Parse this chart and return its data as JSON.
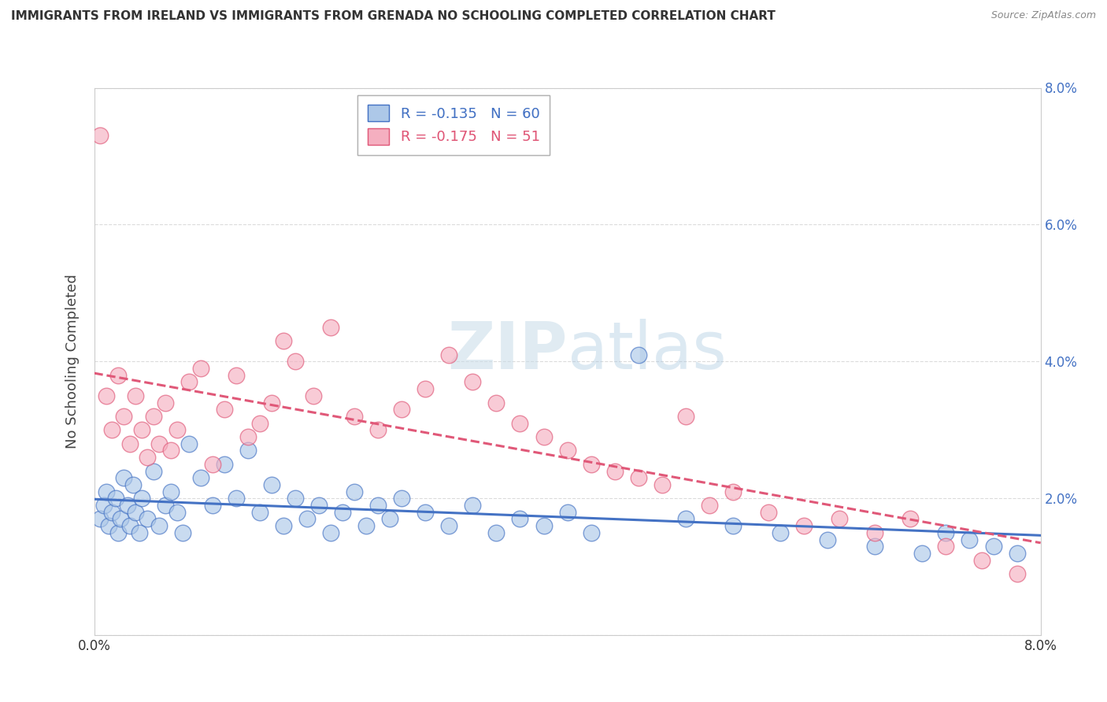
{
  "title": "IMMIGRANTS FROM IRELAND VS IMMIGRANTS FROM GRENADA NO SCHOOLING COMPLETED CORRELATION CHART",
  "source": "Source: ZipAtlas.com",
  "ylabel": "No Schooling Completed",
  "xlim": [
    0.0,
    8.0
  ],
  "ylim": [
    0.0,
    8.0
  ],
  "legend_ireland": "Immigrants from Ireland",
  "legend_grenada": "Immigrants from Grenada",
  "R_ireland": "-0.135",
  "N_ireland": "60",
  "R_grenada": "-0.175",
  "N_grenada": "51",
  "color_ireland": "#adc8e8",
  "color_grenada": "#f5afc0",
  "line_ireland": "#4472c4",
  "line_grenada": "#e05878",
  "background_color": "#ffffff",
  "grid_color": "#cccccc",
  "ireland_x": [
    0.05,
    0.08,
    0.1,
    0.12,
    0.15,
    0.18,
    0.2,
    0.22,
    0.25,
    0.28,
    0.3,
    0.33,
    0.35,
    0.38,
    0.4,
    0.45,
    0.5,
    0.55,
    0.6,
    0.65,
    0.7,
    0.75,
    0.8,
    0.9,
    1.0,
    1.1,
    1.2,
    1.3,
    1.4,
    1.5,
    1.6,
    1.7,
    1.8,
    1.9,
    2.0,
    2.1,
    2.2,
    2.3,
    2.4,
    2.5,
    2.6,
    2.8,
    3.0,
    3.2,
    3.4,
    3.6,
    3.8,
    4.0,
    4.2,
    4.6,
    5.0,
    5.4,
    5.8,
    6.2,
    6.6,
    7.0,
    7.2,
    7.4,
    7.6,
    7.8
  ],
  "ireland_y": [
    1.7,
    1.9,
    2.1,
    1.6,
    1.8,
    2.0,
    1.5,
    1.7,
    2.3,
    1.9,
    1.6,
    2.2,
    1.8,
    1.5,
    2.0,
    1.7,
    2.4,
    1.6,
    1.9,
    2.1,
    1.8,
    1.5,
    2.8,
    2.3,
    1.9,
    2.5,
    2.0,
    2.7,
    1.8,
    2.2,
    1.6,
    2.0,
    1.7,
    1.9,
    1.5,
    1.8,
    2.1,
    1.6,
    1.9,
    1.7,
    2.0,
    1.8,
    1.6,
    1.9,
    1.5,
    1.7,
    1.6,
    1.8,
    1.5,
    4.1,
    1.7,
    1.6,
    1.5,
    1.4,
    1.3,
    1.2,
    1.5,
    1.4,
    1.3,
    1.2
  ],
  "grenada_x": [
    0.05,
    0.1,
    0.15,
    0.2,
    0.25,
    0.3,
    0.35,
    0.4,
    0.45,
    0.5,
    0.55,
    0.6,
    0.65,
    0.7,
    0.8,
    0.9,
    1.0,
    1.1,
    1.2,
    1.3,
    1.4,
    1.5,
    1.6,
    1.7,
    1.85,
    2.0,
    2.2,
    2.4,
    2.6,
    2.8,
    3.0,
    3.2,
    3.4,
    3.6,
    3.8,
    4.0,
    4.2,
    4.4,
    4.6,
    4.8,
    5.0,
    5.2,
    5.4,
    5.7,
    6.0,
    6.3,
    6.6,
    6.9,
    7.2,
    7.5,
    7.8
  ],
  "grenada_y": [
    7.3,
    3.5,
    3.0,
    3.8,
    3.2,
    2.8,
    3.5,
    3.0,
    2.6,
    3.2,
    2.8,
    3.4,
    2.7,
    3.0,
    3.7,
    3.9,
    2.5,
    3.3,
    3.8,
    2.9,
    3.1,
    3.4,
    4.3,
    4.0,
    3.5,
    4.5,
    3.2,
    3.0,
    3.3,
    3.6,
    4.1,
    3.7,
    3.4,
    3.1,
    2.9,
    2.7,
    2.5,
    2.4,
    2.3,
    2.2,
    3.2,
    1.9,
    2.1,
    1.8,
    1.6,
    1.7,
    1.5,
    1.7,
    1.3,
    1.1,
    0.9
  ]
}
